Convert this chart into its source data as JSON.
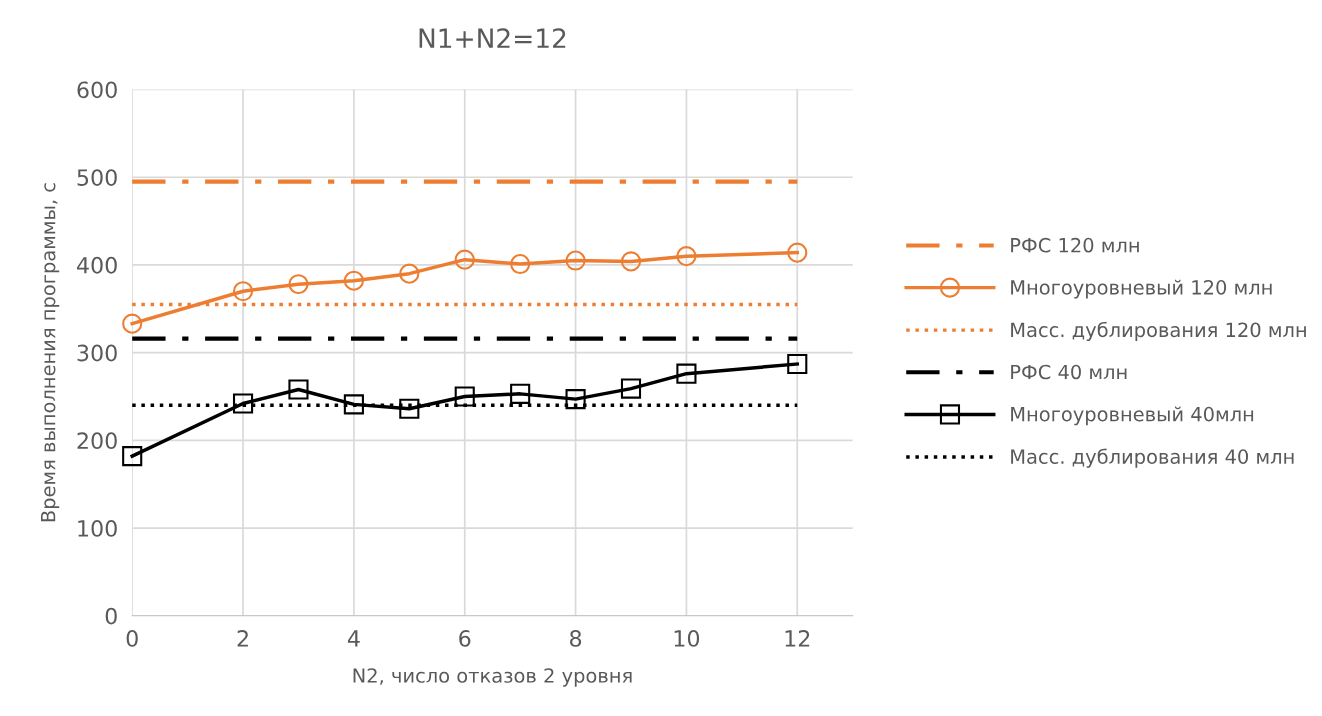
{
  "chart_data": {
    "type": "line",
    "title": "N1+N2=12",
    "xlabel": "N2, число отказов 2 уровня",
    "ylabel": "Время выполнения программы, с",
    "xlim": [
      0,
      13
    ],
    "xticks": [
      0,
      2,
      4,
      6,
      8,
      10,
      12
    ],
    "ylim": [
      0,
      600
    ],
    "yticks": [
      0,
      100,
      200,
      300,
      400,
      500,
      600
    ],
    "grid": true,
    "legend": "right",
    "series": [
      {
        "name": "РФС 120 млн",
        "color": "#ed7d31",
        "line_style": "dashdot",
        "marker": "none",
        "x": [
          0,
          12
        ],
        "values": [
          495,
          495
        ]
      },
      {
        "name": "Многоуровневый 120 млн",
        "color": "#ed7d31",
        "line_style": "solid",
        "marker": "circle",
        "x": [
          0,
          2,
          3,
          4,
          5,
          6,
          7,
          8,
          9,
          10,
          12
        ],
        "values": [
          333,
          370,
          378,
          382,
          390,
          406,
          401,
          405,
          404,
          410,
          414
        ]
      },
      {
        "name": "Масс. дублирования 120 млн",
        "color": "#ed7d31",
        "line_style": "dotted",
        "marker": "none",
        "x": [
          0,
          12
        ],
        "values": [
          355,
          355
        ]
      },
      {
        "name": "РФС 40 млн",
        "color": "#000000",
        "line_style": "dashdot",
        "marker": "none",
        "x": [
          0,
          12
        ],
        "values": [
          316,
          316
        ]
      },
      {
        "name": "Многоуровневый 40млн",
        "color": "#000000",
        "line_style": "solid",
        "marker": "square",
        "x": [
          0,
          2,
          3,
          4,
          5,
          6,
          7,
          8,
          9,
          10,
          12
        ],
        "values": [
          182,
          242,
          258,
          241,
          236,
          250,
          253,
          247,
          259,
          276,
          287
        ]
      },
      {
        "name": "Масс. дублирования 40 млн",
        "color": "#000000",
        "line_style": "dotted",
        "marker": "none",
        "x": [
          0,
          12
        ],
        "values": [
          240,
          240
        ]
      }
    ]
  }
}
